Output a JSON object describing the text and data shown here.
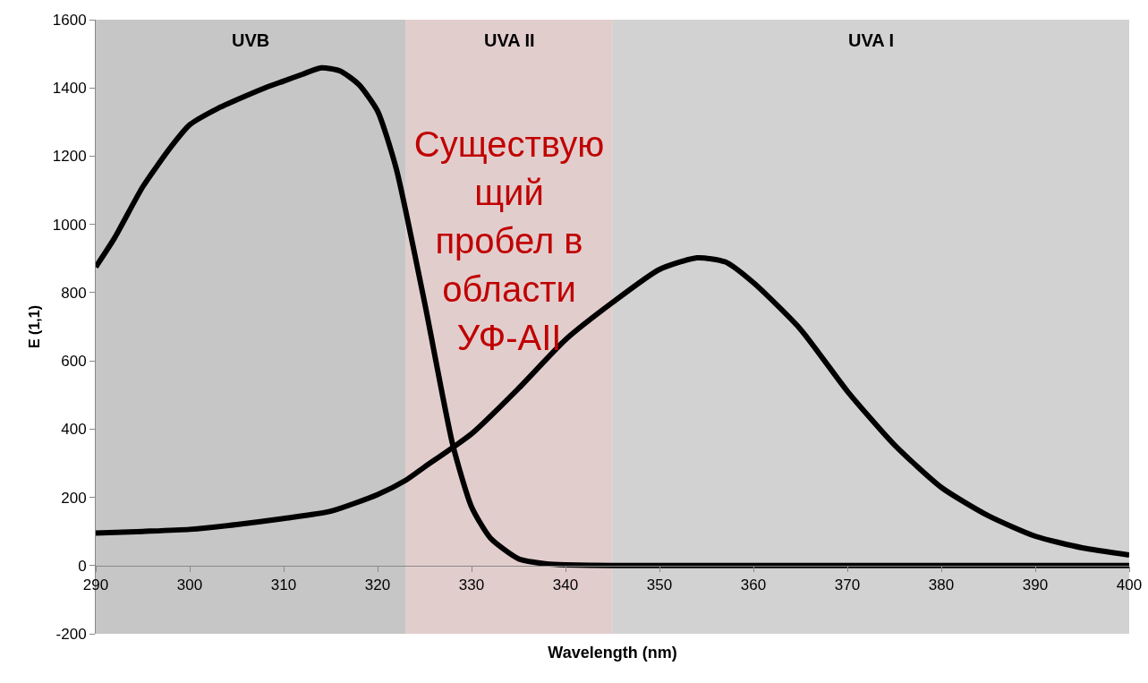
{
  "chart_data": {
    "type": "line",
    "xlabel": "Wavelength (nm)",
    "ylabel": "E (1,1)",
    "xlim": [
      290,
      400
    ],
    "xticks": [
      290,
      300,
      310,
      320,
      330,
      340,
      350,
      360,
      370,
      380,
      390,
      400
    ],
    "ylim": [
      -200,
      1600
    ],
    "yticks": [
      -200,
      0,
      200,
      400,
      600,
      800,
      1000,
      1200,
      1400,
      1600
    ],
    "marker": "none",
    "line_style": "solid",
    "series": [
      {
        "color": "#000000",
        "x": [
          290,
          292,
          295,
          298,
          300,
          303,
          305,
          308,
          310,
          312,
          314,
          316,
          318,
          320,
          322,
          325,
          328,
          330,
          332,
          335,
          338,
          340,
          345,
          350,
          360,
          370,
          380,
          390,
          400
        ],
        "values": [
          875,
          960,
          1110,
          1227,
          1292,
          1340,
          1365,
          1400,
          1420,
          1440,
          1459,
          1450,
          1410,
          1332,
          1162,
          771,
          354,
          172,
          81,
          20,
          5,
          2,
          0,
          0,
          0,
          0,
          0,
          0,
          0
        ]
      },
      {
        "color": "#000000",
        "x": [
          290,
          295,
          300,
          305,
          310,
          315,
          320,
          323,
          325,
          330,
          335,
          340,
          345,
          350,
          354,
          357,
          360,
          365,
          370,
          375,
          380,
          385,
          390,
          395,
          400
        ],
        "values": [
          95,
          100,
          106,
          120,
          138,
          159,
          208,
          250,
          289,
          386,
          519,
          662,
          771,
          868,
          902,
          890,
          829,
          693,
          511,
          354,
          229,
          146,
          86,
          52,
          31
        ]
      }
    ],
    "bands": [
      {
        "axis": "x",
        "from": 290,
        "to": 323,
        "label": "UVB",
        "color": "#c6c6c6"
      },
      {
        "axis": "x",
        "from": 323,
        "to": 345,
        "label": "UVA II",
        "color": "#e2cdcd"
      },
      {
        "axis": "x",
        "from": 345,
        "to": 400,
        "label": "UVA I",
        "color": "#d2d2d2"
      }
    ],
    "annotations": [
      "Существующий пробел в области УФ-АII"
    ]
  }
}
